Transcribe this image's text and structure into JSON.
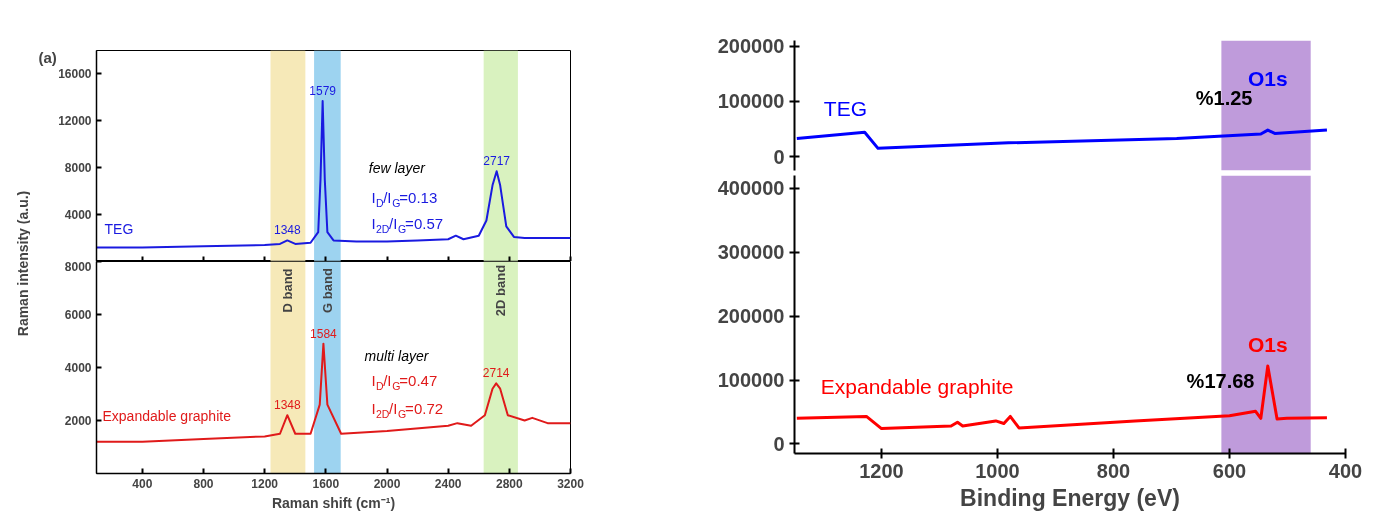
{
  "chart_data": [
    {
      "type": "line",
      "x": [
        100,
        400,
        800,
        1200,
        1300,
        1348,
        1400,
        1500,
        1550,
        1565,
        1579,
        1593,
        1610,
        1650,
        1800,
        2000,
        2200,
        2400,
        2450,
        2500,
        2600,
        2650,
        2690,
        2717,
        2740,
        2780,
        2830,
        2900,
        3200
      ],
      "series": [
        {
          "name": "TEG",
          "color": "#1a1ae0",
          "values": [
            1200,
            1200,
            1300,
            1400,
            1500,
            1800,
            1500,
            1600,
            2500,
            7000,
            13700,
            7000,
            2500,
            1800,
            1700,
            1700,
            1800,
            1900,
            2200,
            1900,
            2200,
            3500,
            6500,
            7700,
            6500,
            3000,
            2100,
            2000,
            2000
          ]
        }
      ],
      "xlim": [
        100,
        3200
      ],
      "xticks": [
        400,
        800,
        1200,
        1600,
        2000,
        2400,
        2800,
        3200
      ],
      "ylim": [
        0,
        18000
      ],
      "yticks": [
        4000,
        8000,
        12000,
        16000
      ],
      "tick_labels": "y",
      "bands": [
        {
          "axis": "x",
          "from": 1238,
          "to": 1466,
          "label": null,
          "color": "#f6e9b8"
        },
        {
          "axis": "x",
          "from": 1523,
          "to": 1697,
          "label": null,
          "color": "#9dd3f0"
        },
        {
          "axis": "x",
          "from": 2632,
          "to": 2856,
          "label": null,
          "color": "#d9f2bf"
        }
      ],
      "title": "(a)",
      "annotations": [
        {
          "text": "1348",
          "x": 1348,
          "y": 1800
        },
        {
          "text": "1579",
          "x": 1579,
          "y": 13700
        },
        {
          "text": "2717",
          "x": 2717,
          "y": 7700
        },
        "few layer",
        "I$_{D}$/I$_{G}$=0.13",
        "I$_{2D}$/I$_{G}$=0.57"
      ]
    },
    {
      "type": "line",
      "x": [
        100,
        400,
        800,
        1200,
        1300,
        1348,
        1400,
        1500,
        1560,
        1584,
        1610,
        1700,
        2000,
        2400,
        2460,
        2550,
        2640,
        2690,
        2714,
        2740,
        2790,
        2900,
        2950,
        3050,
        3200
      ],
      "series": [
        {
          "name": "Expandable graphite",
          "color": "#e01a1a",
          "values": [
            1200,
            1200,
            1300,
            1400,
            1500,
            2200,
            1500,
            1500,
            2600,
            4900,
            2600,
            1500,
            1600,
            1800,
            1900,
            1800,
            2200,
            3200,
            3400,
            3200,
            2200,
            2000,
            2100,
            1900,
            1900
          ]
        }
      ],
      "xlim": [
        100,
        3200
      ],
      "xticks": [
        400,
        800,
        1200,
        1600,
        2000,
        2400,
        2800,
        3200
      ],
      "ylim": [
        0,
        8000
      ],
      "yticks": [
        2000,
        4000,
        6000,
        8000
      ],
      "xlabel": "Raman shift (cm⁻¹)",
      "ylabel": "Raman intensity (a.u.)",
      "bands": [
        {
          "axis": "x",
          "from": 1238,
          "to": 1466,
          "label": "D band",
          "color": "#f6e9b8"
        },
        {
          "axis": "x",
          "from": 1523,
          "to": 1697,
          "label": "G band",
          "color": "#9dd3f0"
        },
        {
          "axis": "x",
          "from": 2632,
          "to": 2856,
          "label": "2D band",
          "color": "#d9f2bf"
        }
      ],
      "annotations": [
        {
          "text": "1348",
          "x": 1348,
          "y": 2200
        },
        {
          "text": "1584",
          "x": 1584,
          "y": 4900
        },
        {
          "text": "2714",
          "x": 2714,
          "y": 3400
        },
        "multi layer",
        "I$_{D}$/I$_{G}$=0.47",
        "I$_{2D}$/I$_{G}$=0.72"
      ]
    },
    {
      "type": "line",
      "x": [
        1346,
        1229,
        1206,
        981,
        691,
        546,
        534,
        522,
        432
      ],
      "series": [
        {
          "name": "TEG",
          "color": "#0000ff",
          "values": [
            33000,
            44000,
            15000,
            25000,
            33000,
            41000,
            48000,
            42000,
            48000
          ]
        }
      ],
      "xlim": [
        1350,
        400
      ],
      "xticks": [
        1200,
        1000,
        800,
        600,
        400
      ],
      "ylim": [
        -25000,
        210000
      ],
      "yticks": [
        0,
        100000,
        200000
      ],
      "tick_labels": "y",
      "bands": [
        {
          "axis": "x",
          "from": 614,
          "to": 460,
          "label": null,
          "color": "#bf9bdb"
        }
      ],
      "annotations": [
        "%1.25",
        {
          "text": "O1s",
          "x": 534,
          "y": 48000
        }
      ]
    },
    {
      "type": "line",
      "x": [
        1346,
        1226,
        1200,
        1080,
        1069,
        1060,
        1003,
        989,
        978,
        963,
        763,
        600,
        555,
        546,
        534,
        518,
        501,
        432
      ],
      "series": [
        {
          "name": "Expandable graphite",
          "color": "#ff0000",
          "values": [
            40000,
            43000,
            24000,
            28000,
            34000,
            28000,
            36000,
            32000,
            43000,
            25000,
            36000,
            44000,
            51000,
            40000,
            122000,
            39000,
            40000,
            41000
          ]
        }
      ],
      "xlim": [
        1350,
        400
      ],
      "xticks": [
        1200,
        1000,
        800,
        600,
        400
      ],
      "ylim": [
        -15000,
        420000
      ],
      "yticks": [
        0,
        100000,
        200000,
        300000,
        400000
      ],
      "xlabel": "Binding Energy (eV)",
      "bands": [
        {
          "axis": "x",
          "from": 614,
          "to": 460,
          "label": null,
          "color": "#bf9bdb"
        }
      ],
      "annotations": [
        "%17.68",
        {
          "text": "O1s",
          "x": 534,
          "y": 122000
        }
      ]
    }
  ]
}
